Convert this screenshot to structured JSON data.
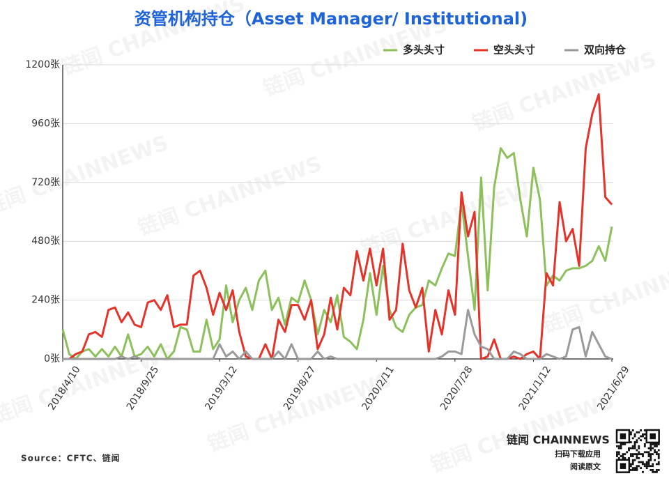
{
  "chart_data": {
    "type": "line",
    "title": "资管机构持仓（Asset Manager/ Institutional)",
    "source": "Source：CFTC、链闻",
    "watermark": "链闻 CHAINNEWS",
    "brand": {
      "name": "链闻 CHAINNEWS",
      "line1": "扫码下载应用",
      "line2": "阅读原文"
    },
    "legend": "top-right",
    "grid": true,
    "x": [
      "2018/4/10",
      "2018/4/24",
      "2018/5/8",
      "2018/5/22",
      "2018/6/5",
      "2018/6/19",
      "2018/7/3",
      "2018/7/17",
      "2018/7/31",
      "2018/8/14",
      "2018/8/28",
      "2018/9/11",
      "2018/9/25",
      "2018/10/9",
      "2018/10/23",
      "2018/11/6",
      "2018/11/20",
      "2018/12/4",
      "2018/12/18",
      "2019/1/1",
      "2019/1/15",
      "2019/1/29",
      "2019/2/12",
      "2019/2/26",
      "2019/3/12",
      "2019/3/26",
      "2019/4/9",
      "2019/4/23",
      "2019/5/7",
      "2019/5/21",
      "2019/6/4",
      "2019/6/18",
      "2019/7/2",
      "2019/7/16",
      "2019/7/30",
      "2019/8/13",
      "2019/8/27",
      "2019/9/10",
      "2019/9/24",
      "2019/10/8",
      "2019/10/22",
      "2019/11/5",
      "2019/11/19",
      "2019/12/3",
      "2019/12/17",
      "2019/12/31",
      "2020/1/14",
      "2020/1/28",
      "2020/2/11",
      "2020/2/25",
      "2020/3/10",
      "2020/3/24",
      "2020/4/7",
      "2020/4/21",
      "2020/5/5",
      "2020/5/19",
      "2020/6/2",
      "2020/6/16",
      "2020/6/30",
      "2020/7/14",
      "2020/7/28",
      "2020/8/11",
      "2020/8/25",
      "2020/9/8",
      "2020/9/22",
      "2020/10/6",
      "2020/10/20",
      "2020/11/3",
      "2020/11/17",
      "2020/12/1",
      "2020/12/15",
      "2020/12/29",
      "2021/1/12",
      "2021/1/26",
      "2021/2/9",
      "2021/2/23",
      "2021/3/9",
      "2021/3/23",
      "2021/4/6",
      "2021/4/20",
      "2021/5/4",
      "2021/5/18",
      "2021/6/1",
      "2021/6/15",
      "2021/6/29"
    ],
    "xticks": [
      "2018/4/10",
      "2018/9/25",
      "2019/3/12",
      "2019/8/27",
      "2020/2/11",
      "2020/7/28",
      "2021/1/12",
      "2021/6/29"
    ],
    "ylim": [
      0,
      1200
    ],
    "yticks": [
      {
        "value": 0,
        "label": "0张"
      },
      {
        "value": 240,
        "label": "240张"
      },
      {
        "value": 480,
        "label": "480张"
      },
      {
        "value": 720,
        "label": "720张"
      },
      {
        "value": 960,
        "label": "960张"
      },
      {
        "value": 1200,
        "label": "1200张"
      }
    ],
    "series": [
      {
        "name": "多头头寸",
        "color": "#8cc05a",
        "values": [
          120,
          20,
          0,
          30,
          40,
          10,
          40,
          10,
          50,
          10,
          100,
          10,
          20,
          50,
          10,
          60,
          0,
          30,
          130,
          120,
          30,
          30,
          160,
          40,
          80,
          300,
          150,
          240,
          290,
          200,
          320,
          360,
          200,
          250,
          140,
          250,
          230,
          320,
          240,
          100,
          200,
          150,
          260,
          90,
          70,
          40,
          160,
          350,
          180,
          380,
          200,
          130,
          110,
          180,
          210,
          220,
          320,
          300,
          370,
          430,
          420,
          640,
          420,
          200,
          740,
          280,
          700,
          860,
          820,
          840,
          650,
          500,
          780,
          650,
          300,
          340,
          320,
          360,
          370,
          370,
          380,
          400,
          460,
          400,
          540
        ]
      },
      {
        "name": "空头头寸",
        "color": "#e5332a",
        "values": [
          0,
          0,
          20,
          30,
          100,
          110,
          90,
          200,
          210,
          150,
          190,
          140,
          130,
          230,
          240,
          200,
          260,
          130,
          140,
          140,
          340,
          360,
          290,
          180,
          270,
          200,
          280,
          110,
          10,
          0,
          0,
          60,
          0,
          160,
          110,
          220,
          220,
          160,
          240,
          40,
          100,
          250,
          120,
          290,
          260,
          440,
          320,
          450,
          300,
          450,
          160,
          200,
          470,
          280,
          210,
          290,
          30,
          200,
          100,
          280,
          180,
          680,
          500,
          600,
          0,
          10,
          80,
          0,
          0,
          10,
          0,
          20,
          30,
          0,
          350,
          300,
          640,
          480,
          530,
          380,
          860,
          1000,
          1080,
          660,
          630
        ]
      },
      {
        "name": "双向持仓",
        "color": "#9a9a9a",
        "values": [
          0,
          0,
          0,
          0,
          0,
          0,
          0,
          0,
          0,
          10,
          0,
          10,
          0,
          0,
          0,
          0,
          0,
          0,
          0,
          0,
          0,
          0,
          0,
          0,
          60,
          10,
          30,
          0,
          30,
          0,
          0,
          0,
          0,
          30,
          0,
          60,
          0,
          0,
          0,
          30,
          0,
          10,
          0,
          0,
          0,
          0,
          0,
          0,
          0,
          0,
          0,
          0,
          0,
          0,
          0,
          0,
          0,
          0,
          10,
          30,
          30,
          20,
          200,
          100,
          50,
          40,
          0,
          0,
          0,
          30,
          20,
          0,
          0,
          0,
          20,
          10,
          0,
          10,
          120,
          130,
          10,
          110,
          60,
          10,
          0
        ]
      }
    ]
  }
}
